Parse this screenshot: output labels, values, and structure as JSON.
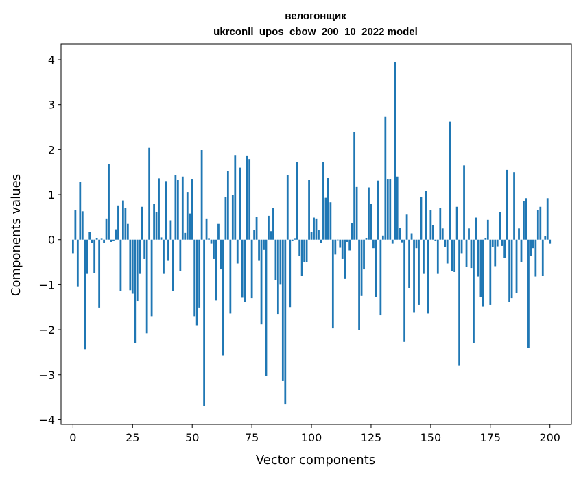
{
  "chart_data": {
    "type": "bar",
    "title": "велогонщик",
    "subtitle": "ukrconll_upos_cbow_200_10_2022 model",
    "xlabel": "Vector components",
    "ylabel": "Components values",
    "xlim": [
      -5,
      209
    ],
    "ylim": [
      -4.1,
      4.35
    ],
    "xticks": [
      0,
      25,
      50,
      75,
      100,
      125,
      150,
      175,
      200
    ],
    "yticks": [
      -4,
      -3,
      -2,
      -1,
      0,
      1,
      2,
      3,
      4
    ],
    "ytick_labels": [
      "−4",
      "−3",
      "−2",
      "−1",
      "0",
      "1",
      "2",
      "3",
      "4"
    ],
    "grid": false,
    "legend": "none",
    "bar_color": "#1f77b4",
    "values": [
      -0.3,
      0.65,
      -1.05,
      1.28,
      0.63,
      -2.43,
      -0.76,
      0.17,
      -0.07,
      -0.75,
      0.03,
      -1.51,
      0.02,
      -0.07,
      0.47,
      1.68,
      -0.05,
      -0.02,
      0.23,
      0.76,
      -1.14,
      0.87,
      0.71,
      0.35,
      -1.12,
      -1.2,
      -2.3,
      -1.36,
      -0.76,
      0.73,
      -0.43,
      -2.08,
      2.04,
      -1.7,
      0.8,
      0.62,
      1.36,
      0.05,
      -0.76,
      1.3,
      -0.47,
      0.43,
      -1.14,
      1.44,
      1.33,
      -0.69,
      1.4,
      0.15,
      1.06,
      0.58,
      1.35,
      -1.7,
      -1.9,
      -1.51,
      1.99,
      -3.7,
      0.47,
      0.02,
      -0.09,
      -0.43,
      -1.35,
      0.35,
      -0.66,
      -2.57,
      0.94,
      1.53,
      -1.64,
      0.99,
      1.88,
      -0.53,
      1.6,
      -1.29,
      -1.38,
      1.87,
      1.79,
      -1.3,
      0.21,
      0.5,
      -0.47,
      -1.88,
      -0.23,
      -3.03,
      0.53,
      0.19,
      0.7,
      -0.9,
      -1.65,
      -1.0,
      -3.14,
      -3.66,
      1.43,
      -1.5,
      -0.02,
      0.02,
      1.72,
      -0.36,
      -0.8,
      -0.5,
      -0.5,
      1.33,
      0.17,
      0.49,
      0.47,
      0.22,
      -0.08,
      1.72,
      0.93,
      1.38,
      0.83,
      -1.97,
      -0.33,
      -0.01,
      -0.18,
      -0.43,
      -0.87,
      -0.05,
      -0.24,
      0.37,
      2.4,
      1.17,
      -2.01,
      -1.25,
      -0.66,
      0.03,
      1.16,
      0.8,
      -0.19,
      -1.27,
      1.31,
      -1.68,
      0.09,
      2.74,
      1.35,
      1.35,
      -0.09,
      3.95,
      1.4,
      0.26,
      -0.06,
      -2.27,
      0.57,
      -1.07,
      0.14,
      -1.61,
      -0.19,
      -1.45,
      0.95,
      -0.76,
      1.09,
      -1.64,
      0.65,
      0.33,
      -0.02,
      -0.76,
      0.71,
      0.25,
      -0.16,
      -0.53,
      2.62,
      -0.7,
      -0.72,
      0.73,
      -2.8,
      -0.3,
      1.65,
      -0.61,
      0.25,
      -0.63,
      -2.3,
      0.49,
      -0.82,
      -1.28,
      -1.49,
      0.03,
      0.44,
      -1.45,
      -0.17,
      -0.59,
      -0.15,
      0.61,
      -0.14,
      -0.4,
      1.55,
      -1.38,
      -1.3,
      1.5,
      -1.18,
      0.25,
      -0.5,
      0.85,
      0.92,
      -2.41,
      -0.37,
      -0.19,
      -0.82,
      0.66,
      0.73,
      -0.8,
      0.08,
      0.92,
      -0.09
    ]
  }
}
